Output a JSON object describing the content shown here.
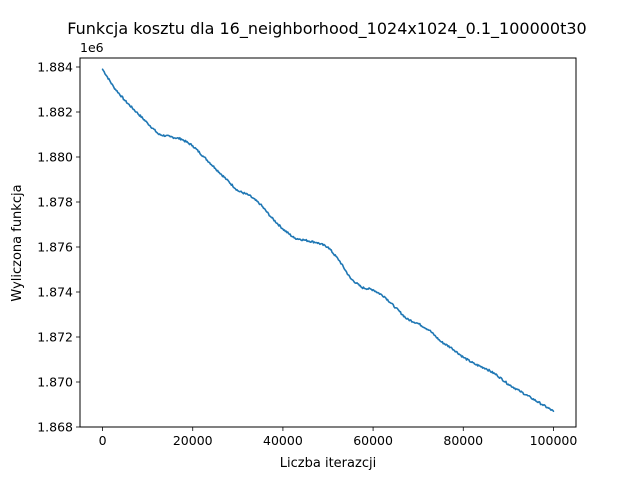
{
  "chart_data": {
    "type": "line",
    "title": "Funkcja kosztu dla 16_neighborhood_1024x1024_0.1_100000t30",
    "xlabel": "Liczba iterazcji",
    "ylabel": "Wyliczona funkcja",
    "y_offset_label": "1e6",
    "xlim": [
      -5000,
      105000
    ],
    "ylim": [
      1868000,
      1884400
    ],
    "x_ticks": [
      0,
      20000,
      40000,
      60000,
      80000,
      100000
    ],
    "x_tick_labels": [
      "0",
      "20000",
      "40000",
      "60000",
      "80000",
      "100000"
    ],
    "y_ticks": [
      1868000,
      1870000,
      1872000,
      1874000,
      1876000,
      1878000,
      1880000,
      1882000,
      1884000
    ],
    "y_tick_labels": [
      "1.868",
      "1.870",
      "1.872",
      "1.874",
      "1.876",
      "1.878",
      "1.880",
      "1.882",
      "1.884"
    ],
    "grid": false,
    "line_color": "#1f77b4",
    "series": [
      {
        "x": [
          0,
          2500,
          5000,
          7500,
          10000,
          12500,
          15000,
          17500,
          20000,
          22500,
          25000,
          27500,
          30000,
          32500,
          35000,
          37500,
          40000,
          42500,
          45000,
          47500,
          50000,
          52500,
          55000,
          57500,
          60000,
          62500,
          65000,
          67500,
          70000,
          72500,
          75000,
          77500,
          80000,
          82500,
          85000,
          87500,
          90000,
          92500,
          95000,
          97500,
          100000
        ],
        "y": [
          1883900,
          1883100,
          1882500,
          1882000,
          1881500,
          1881000,
          1880900,
          1880800,
          1880500,
          1880000,
          1879500,
          1879000,
          1878500,
          1878300,
          1877900,
          1877300,
          1876800,
          1876400,
          1876300,
          1876200,
          1876000,
          1875400,
          1874600,
          1874200,
          1874100,
          1873800,
          1873300,
          1872800,
          1872600,
          1872300,
          1871800,
          1871500,
          1871100,
          1870800,
          1870600,
          1870300,
          1869900,
          1869600,
          1869300,
          1869000,
          1868700
        ]
      }
    ]
  }
}
